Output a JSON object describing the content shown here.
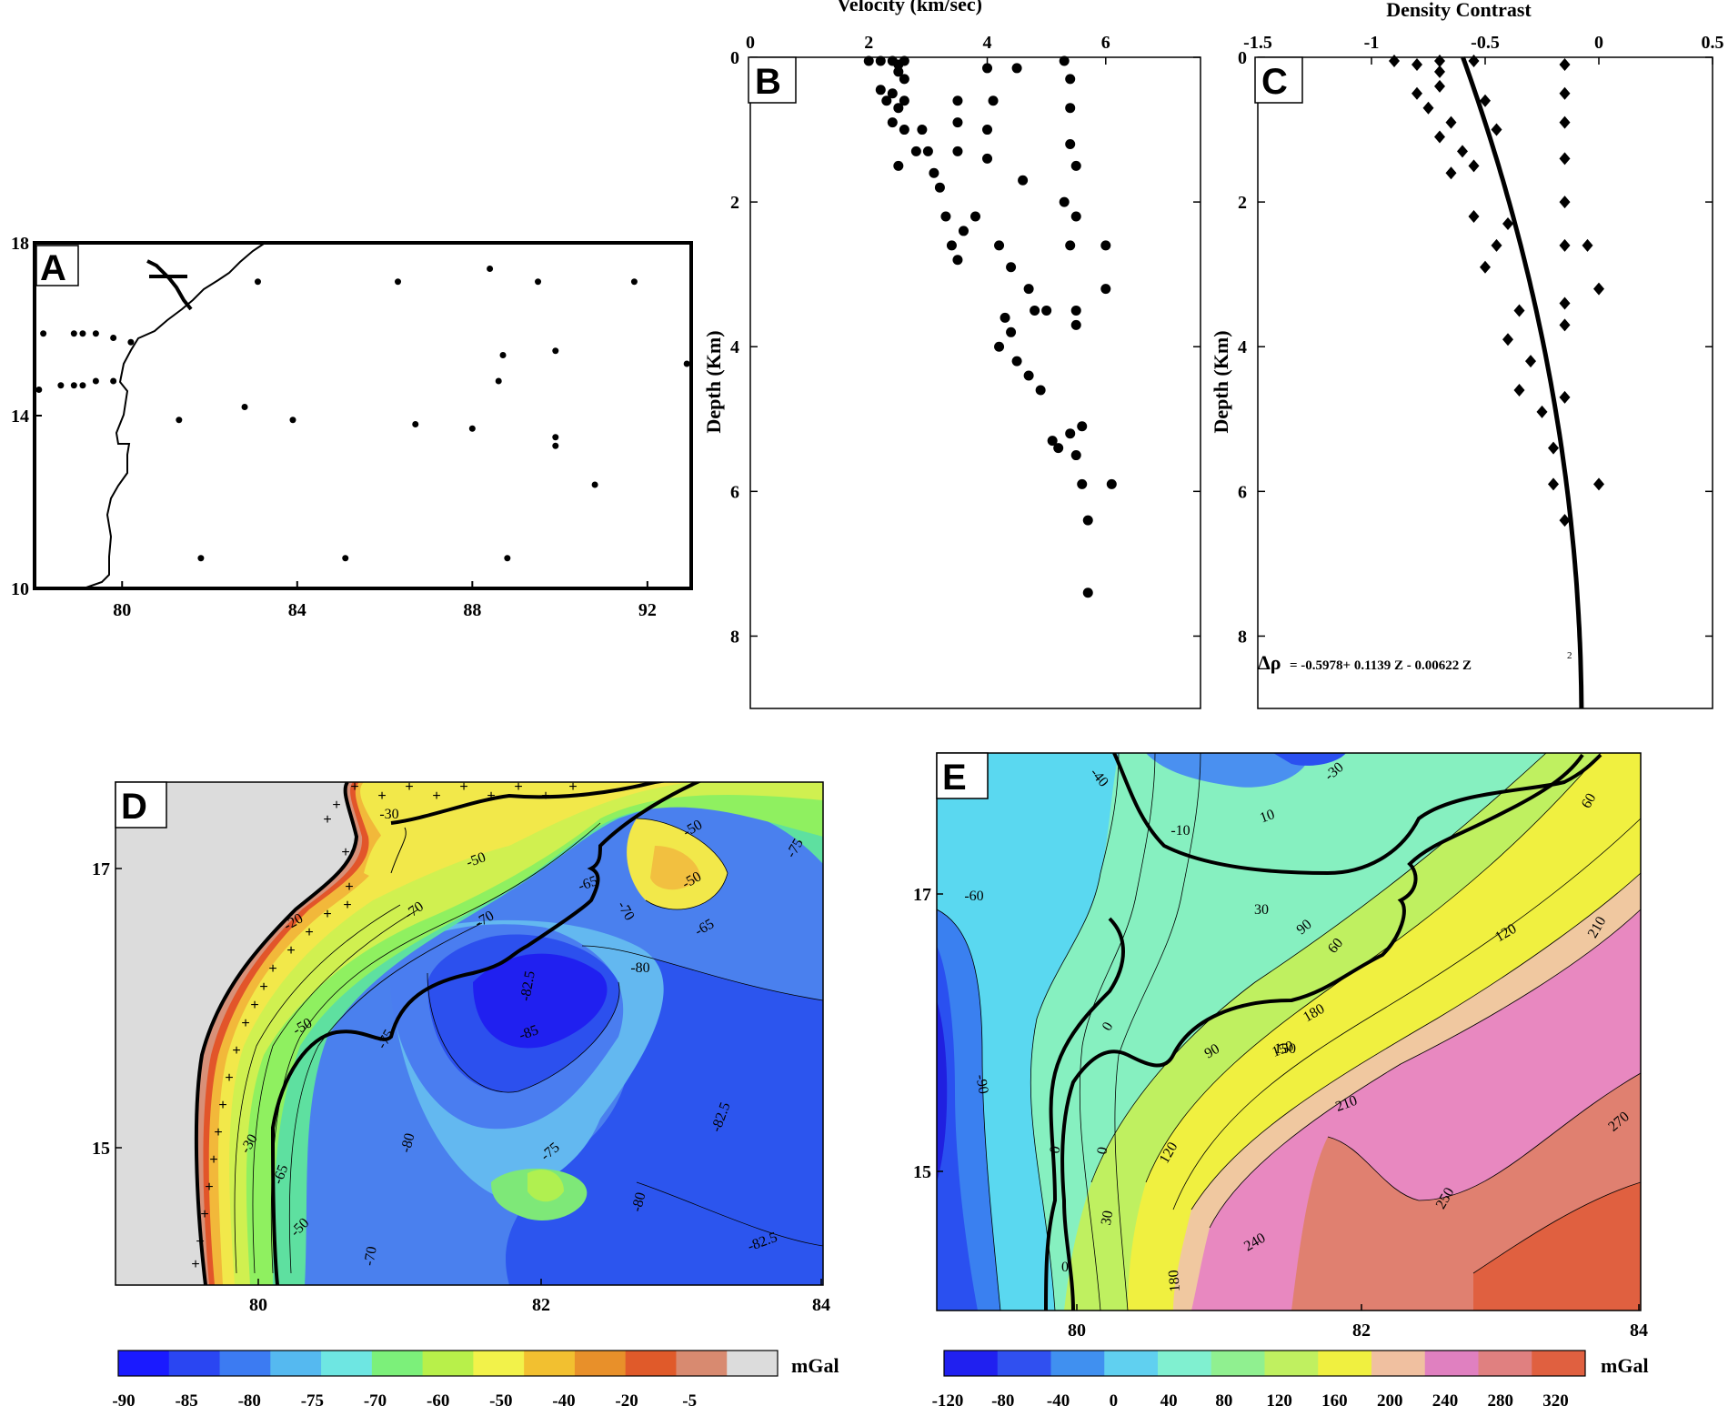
{
  "chart_data": [
    {
      "panel": "A",
      "type": "scatter",
      "xticks": [
        "80",
        "84",
        "88",
        "92"
      ],
      "yticks": [
        "18",
        "14",
        "10"
      ],
      "xlim": [
        78,
        93
      ],
      "ylim": [
        10,
        18
      ],
      "points": [
        [
          78.2,
          15.9
        ],
        [
          78.9,
          15.9
        ],
        [
          79.1,
          15.9
        ],
        [
          79.4,
          15.9
        ],
        [
          79.8,
          15.8
        ],
        [
          80.2,
          15.7
        ],
        [
          78.1,
          14.6
        ],
        [
          78.6,
          14.7
        ],
        [
          78.9,
          14.7
        ],
        [
          79.1,
          14.7
        ],
        [
          79.4,
          14.8
        ],
        [
          79.8,
          14.8
        ],
        [
          83.1,
          17.1
        ],
        [
          86.3,
          17.1
        ],
        [
          88.4,
          17.4
        ],
        [
          89.5,
          17.1
        ],
        [
          91.7,
          17.1
        ],
        [
          92.9,
          15.2
        ],
        [
          88.7,
          15.4
        ],
        [
          89.9,
          15.5
        ],
        [
          88.6,
          14.8
        ],
        [
          81.3,
          13.9
        ],
        [
          82.8,
          14.2
        ],
        [
          83.9,
          13.9
        ],
        [
          86.7,
          13.8
        ],
        [
          88.0,
          13.7
        ],
        [
          89.9,
          13.5
        ],
        [
          89.9,
          13.3
        ],
        [
          90.8,
          12.4
        ],
        [
          81.8,
          10.7
        ],
        [
          85.1,
          10.7
        ],
        [
          88.8,
          10.7
        ]
      ]
    },
    {
      "panel": "B",
      "type": "scatter",
      "title": "Velocity (km/sec)",
      "ylabel": "Depth (Km)",
      "xticks": [
        "0",
        "2",
        "4",
        "6"
      ],
      "yticks": [
        "0",
        "2",
        "4",
        "6",
        "8"
      ],
      "xlim": [
        0,
        7.6
      ],
      "ylim": [
        0,
        9
      ],
      "points": [
        [
          2.0,
          0.05
        ],
        [
          2.2,
          0.05
        ],
        [
          2.4,
          0.05
        ],
        [
          2.5,
          0.1
        ],
        [
          2.6,
          0.05
        ],
        [
          2.5,
          0.2
        ],
        [
          2.6,
          0.3
        ],
        [
          2.2,
          0.45
        ],
        [
          2.4,
          0.5
        ],
        [
          2.3,
          0.6
        ],
        [
          2.5,
          0.7
        ],
        [
          2.6,
          0.6
        ],
        [
          2.4,
          0.9
        ],
        [
          2.6,
          1.0
        ],
        [
          2.8,
          1.3
        ],
        [
          2.5,
          1.5
        ],
        [
          2.9,
          1.0
        ],
        [
          3.0,
          1.3
        ],
        [
          3.1,
          1.6
        ],
        [
          3.2,
          1.8
        ],
        [
          3.3,
          2.2
        ],
        [
          3.4,
          2.6
        ],
        [
          3.5,
          2.8
        ],
        [
          3.6,
          2.4
        ],
        [
          3.8,
          2.2
        ],
        [
          3.5,
          0.6
        ],
        [
          3.5,
          0.9
        ],
        [
          3.5,
          1.3
        ],
        [
          4.0,
          0.15
        ],
        [
          4.1,
          0.6
        ],
        [
          4.0,
          1.0
        ],
        [
          4.0,
          1.4
        ],
        [
          4.2,
          2.6
        ],
        [
          4.4,
          2.9
        ],
        [
          4.6,
          1.7
        ],
        [
          4.5,
          0.15
        ],
        [
          4.3,
          3.6
        ],
        [
          4.4,
          3.8
        ],
        [
          4.2,
          4.0
        ],
        [
          4.5,
          4.2
        ],
        [
          4.7,
          4.4
        ],
        [
          4.9,
          4.6
        ],
        [
          4.8,
          3.5
        ],
        [
          5.0,
          3.5
        ],
        [
          5.1,
          5.3
        ],
        [
          5.2,
          5.4
        ],
        [
          5.3,
          0.05
        ],
        [
          5.4,
          0.3
        ],
        [
          5.4,
          0.7
        ],
        [
          5.4,
          1.2
        ],
        [
          5.5,
          1.5
        ],
        [
          5.3,
          2.0
        ],
        [
          5.5,
          2.2
        ],
        [
          5.4,
          2.6
        ],
        [
          5.5,
          3.5
        ],
        [
          5.5,
          3.7
        ],
        [
          5.4,
          5.2
        ],
        [
          5.5,
          5.5
        ],
        [
          5.6,
          5.9
        ],
        [
          5.6,
          5.1
        ],
        [
          5.7,
          6.4
        ],
        [
          5.7,
          7.4
        ],
        [
          6.0,
          2.6
        ],
        [
          6.0,
          3.2
        ],
        [
          6.1,
          5.9
        ],
        [
          4.7,
          3.2
        ]
      ]
    },
    {
      "panel": "C",
      "type": "scatter",
      "title": "Density Contrast",
      "ylabel": "Depth (Km)",
      "xticks": [
        "-1.5",
        "-1",
        "-0.5",
        "0",
        "0.5"
      ],
      "yticks": [
        "0",
        "2",
        "4",
        "6",
        "8"
      ],
      "xlim": [
        -1.5,
        0.5
      ],
      "ylim": [
        0,
        9
      ],
      "points": [
        [
          -0.9,
          0.05
        ],
        [
          -0.8,
          0.1
        ],
        [
          -0.7,
          0.2
        ],
        [
          -0.7,
          0.4
        ],
        [
          -0.8,
          0.5
        ],
        [
          -0.75,
          0.7
        ],
        [
          -0.65,
          0.9
        ],
        [
          -0.7,
          1.1
        ],
        [
          -0.6,
          1.3
        ],
        [
          -0.65,
          1.6
        ],
        [
          -0.55,
          1.5
        ],
        [
          -0.5,
          0.6
        ],
        [
          -0.45,
          1.0
        ],
        [
          -0.55,
          2.2
        ],
        [
          -0.45,
          2.6
        ],
        [
          -0.5,
          2.9
        ],
        [
          -0.4,
          2.3
        ],
        [
          -0.35,
          3.5
        ],
        [
          -0.4,
          3.9
        ],
        [
          -0.3,
          4.2
        ],
        [
          -0.35,
          4.6
        ],
        [
          -0.25,
          4.9
        ],
        [
          -0.2,
          5.4
        ],
        [
          -0.2,
          5.9
        ],
        [
          -0.15,
          6.4
        ],
        [
          -0.15,
          0.1
        ],
        [
          -0.15,
          0.5
        ],
        [
          -0.15,
          0.9
        ],
        [
          -0.15,
          1.4
        ],
        [
          -0.15,
          2.0
        ],
        [
          -0.15,
          2.6
        ],
        [
          -0.15,
          3.4
        ],
        [
          -0.15,
          3.7
        ],
        [
          -0.15,
          4.7
        ],
        [
          -0.05,
          2.6
        ],
        [
          0.0,
          3.2
        ],
        [
          0.0,
          5.9
        ],
        [
          -0.7,
          0.05
        ],
        [
          -0.55,
          0.05
        ]
      ],
      "fit": "-0.5978 + 0.1139 Z - 0.00622 Z^2",
      "equation_label": "= -0.5978+ 0.1139 Z - 0.00622 Z"
    },
    {
      "panel": "D",
      "type": "heatmap",
      "xticks": [
        "80",
        "82",
        "84"
      ],
      "yticks": [
        "17",
        "15"
      ],
      "contour_labels": [
        "-30",
        "-50",
        "-50",
        "-50",
        "-65",
        "-70",
        "-75",
        "-70",
        "-65",
        "-80",
        "-82.5",
        "-20",
        "-50",
        "-75",
        "-85",
        "-82.5",
        "-30",
        "-65",
        "-80",
        "-75",
        "-80",
        "-82.5",
        "-50",
        "-70",
        "-70"
      ],
      "colorbar_ticks": [
        "-90",
        "-85",
        "-80",
        "-75",
        "-70",
        "-60",
        "-50",
        "-40",
        "-20",
        "-5"
      ],
      "colorbar_colors": [
        "#1a1aff",
        "#2a46f2",
        "#3c7bf2",
        "#55b9f0",
        "#6ee6e2",
        "#7cf07a",
        "#b8f04a",
        "#f2f24a",
        "#f2c030",
        "#e8902a",
        "#e05a2a",
        "#d88a70",
        "#dcdcdc"
      ],
      "unit": "mGal"
    },
    {
      "panel": "E",
      "type": "heatmap",
      "xticks": [
        "80",
        "82",
        "84"
      ],
      "yticks": [
        "17",
        "15"
      ],
      "contour_labels": [
        "-40",
        "-30",
        "-10",
        "10",
        "30",
        "-60",
        "60",
        "90",
        "60",
        "150",
        "120",
        "210",
        "0",
        "90",
        "150",
        "180",
        "0",
        "0",
        "210",
        "-90",
        "120",
        "270",
        "250",
        "30",
        "240",
        "180",
        "0"
      ],
      "colorbar_ticks": [
        "-120",
        "-80",
        "-40",
        "0",
        "40",
        "80",
        "120",
        "160",
        "200",
        "240",
        "280",
        "320"
      ],
      "colorbar_colors": [
        "#2020f0",
        "#3050f0",
        "#4090f0",
        "#60d0f0",
        "#80f0d0",
        "#90f090",
        "#c0f060",
        "#f0f040",
        "#f0c0a0",
        "#e080c0",
        "#e08080",
        "#e06040"
      ],
      "unit": "mGal"
    }
  ]
}
